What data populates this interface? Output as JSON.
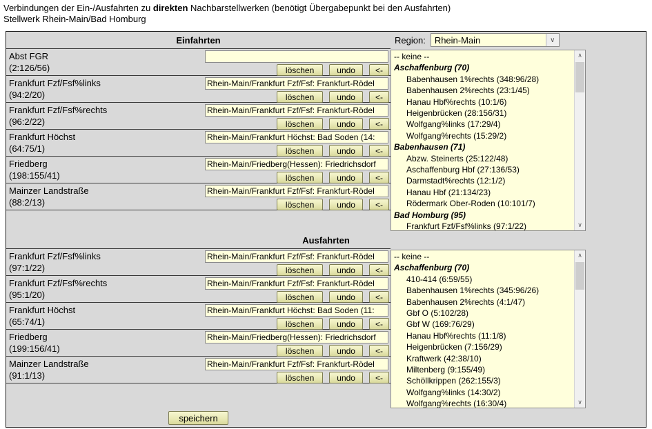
{
  "header": {
    "line1_pre": "Verbindungen der Ein-/Ausfahrten zu ",
    "line1_bold": "direkten",
    "line1_post": " Nachbarstellwerken (benötigt Übergabepunkt bei den Ausfahrten)",
    "line2": "Stellwerk Rhein-Main/Bad Homburg"
  },
  "region": {
    "label": "Region:",
    "value": "Rhein-Main"
  },
  "buttons": {
    "delete": "löschen",
    "undo": "undo",
    "transfer": "<-"
  },
  "save_label": "speichern",
  "icons": {
    "select_arrow": "∨",
    "scroll_up": "∧",
    "scroll_down": "∨"
  },
  "colors": {
    "table_bg": "#d9d9d9",
    "field_bg": "#ffffdc",
    "button_bg": "#e9e9b6"
  },
  "einfahrten": {
    "title": "Einfahrten",
    "rows": [
      {
        "name": "Abst FGR",
        "code": "(2:126/56)",
        "value": ""
      },
      {
        "name": "Frankfurt Fzf/Fsf%links",
        "code": "(94:2/20)",
        "value": "Rhein-Main/Frankfurt Fzf/Fsf: Frankfurt-Rödel"
      },
      {
        "name": "Frankfurt Fzf/Fsf%rechts",
        "code": "(96:2/22)",
        "value": "Rhein-Main/Frankfurt Fzf/Fsf: Frankfurt-Rödel"
      },
      {
        "name": "Frankfurt Höchst",
        "code": "(64:75/1)",
        "value": "Rhein-Main/Frankfurt Höchst: Bad Soden (14:"
      },
      {
        "name": "Friedberg",
        "code": "(198:155/41)",
        "value": "Rhein-Main/Friedberg(Hessen): Friedrichsdorf"
      },
      {
        "name": "Mainzer Landstraße",
        "code": "(88:2/13)",
        "value": "Rhein-Main/Frankfurt Fzf/Fsf: Frankfurt-Rödel"
      }
    ],
    "list": [
      {
        "text": "-- keine --",
        "type": "item"
      },
      {
        "text": "Aschaffenburg (70)",
        "type": "group"
      },
      {
        "text": "Babenhausen 1%rechts (348:96/28)",
        "type": "sub"
      },
      {
        "text": "Babenhausen 2%rechts (23:1/45)",
        "type": "sub"
      },
      {
        "text": "Hanau Hbf%rechts (10:1/6)",
        "type": "sub"
      },
      {
        "text": "Heigenbrücken (28:156/31)",
        "type": "sub"
      },
      {
        "text": "Wolfgang%links (17:29/4)",
        "type": "sub"
      },
      {
        "text": "Wolfgang%rechts (15:29/2)",
        "type": "sub"
      },
      {
        "text": "Babenhausen (71)",
        "type": "group"
      },
      {
        "text": "Abzw. Steinerts (25:122/48)",
        "type": "sub"
      },
      {
        "text": "Aschaffenburg Hbf (27:136/53)",
        "type": "sub"
      },
      {
        "text": "Darmstadt%rechts (12:1/2)",
        "type": "sub"
      },
      {
        "text": "Hanau Hbf (21:134/23)",
        "type": "sub"
      },
      {
        "text": "Rödermark Ober-Roden (10:101/7)",
        "type": "sub"
      },
      {
        "text": "Bad Homburg (95)",
        "type": "group"
      },
      {
        "text": "Frankfurt Fzf/Fsf%links (97:1/22)",
        "type": "sub"
      }
    ]
  },
  "ausfahrten": {
    "title": "Ausfahrten",
    "rows": [
      {
        "name": "Frankfurt Fzf/Fsf%links",
        "code": "(97:1/22)",
        "value": "Rhein-Main/Frankfurt Fzf/Fsf: Frankfurt-Rödel"
      },
      {
        "name": "Frankfurt Fzf/Fsf%rechts",
        "code": "(95:1/20)",
        "value": "Rhein-Main/Frankfurt Fzf/Fsf: Frankfurt-Rödel"
      },
      {
        "name": "Frankfurt Höchst",
        "code": "(65:74/1)",
        "value": "Rhein-Main/Frankfurt Höchst: Bad Soden (11:"
      },
      {
        "name": "Friedberg",
        "code": "(199:156/41)",
        "value": "Rhein-Main/Friedberg(Hessen): Friedrichsdorf"
      },
      {
        "name": "Mainzer Landstraße",
        "code": "(91:1/13)",
        "value": "Rhein-Main/Frankfurt Fzf/Fsf: Frankfurt-Rödel"
      }
    ],
    "list": [
      {
        "text": "-- keine --",
        "type": "item"
      },
      {
        "text": "Aschaffenburg (70)",
        "type": "group"
      },
      {
        "text": "410-414 (6:59/55)",
        "type": "sub"
      },
      {
        "text": "Babenhausen 1%rechts (345:96/26)",
        "type": "sub"
      },
      {
        "text": "Babenhausen 2%rechts (4:1/47)",
        "type": "sub"
      },
      {
        "text": "Gbf O (5:102/28)",
        "type": "sub"
      },
      {
        "text": "Gbf W (169:76/29)",
        "type": "sub"
      },
      {
        "text": "Hanau Hbf%rechts (11:1/8)",
        "type": "sub"
      },
      {
        "text": "Heigenbrücken (7:156/29)",
        "type": "sub"
      },
      {
        "text": "Kraftwerk (42:38/10)",
        "type": "sub"
      },
      {
        "text": "Miltenberg (9:155/49)",
        "type": "sub"
      },
      {
        "text": "Schöllkrippen (262:155/3)",
        "type": "sub"
      },
      {
        "text": "Wolfgang%links (14:30/2)",
        "type": "sub"
      },
      {
        "text": "Wolfgang%rechts (16:30/4)",
        "type": "sub"
      }
    ]
  }
}
